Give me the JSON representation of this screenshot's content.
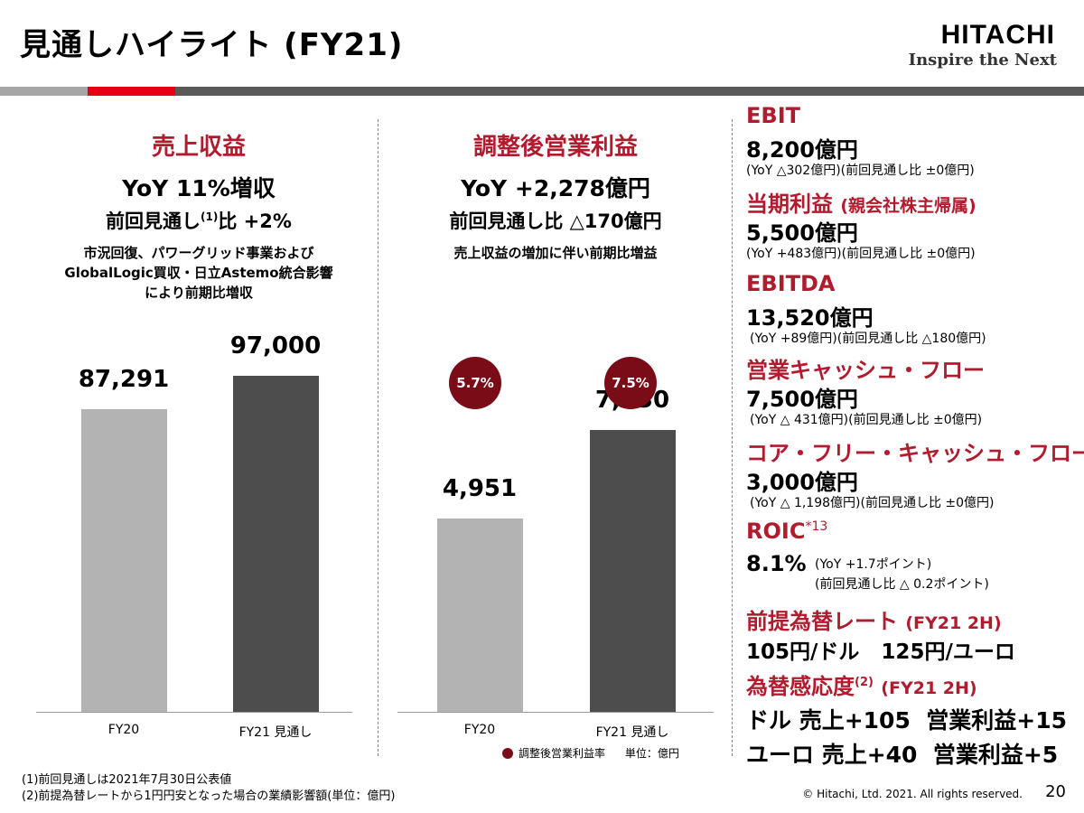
{
  "title": "見通しハイライト (FY21)",
  "logo": {
    "name": "HITACHI",
    "tagline": "Inspire the Next"
  },
  "colors": {
    "accent": "#b01c2e",
    "bar_fy20": "#b3b3b3",
    "bar_fy21": "#4d4d4d",
    "rate_circle": "#7a0c17",
    "band_gray": "#a6a6a6",
    "band_red": "#e60012",
    "band_dark": "#595959"
  },
  "revenue": {
    "title": "売上収益",
    "yoy": "YoY 11%増収",
    "prev_prefix": "前回見通し",
    "prev_sup": "(1)",
    "prev_suffix": "比  +2%",
    "note_lines": [
      "市況回復、パワーグリッド事業および",
      "GlobalLogic買収・日立Astemo統合影響",
      "により前期比増収"
    ]
  },
  "adj_op": {
    "title": "調整後営業利益",
    "yoy": "YoY +2,278億円",
    "prev": "前回見通し比 △170億円",
    "note": "売上収益の増加に伴い前期比増益",
    "legend": "調整後営業利益率",
    "unit": "単位：億円"
  },
  "chart_data": [
    {
      "type": "bar",
      "categories": [
        "FY20",
        "FY21 見通し"
      ],
      "values": [
        87291,
        97000
      ],
      "value_labels": [
        "87,291",
        "97,000"
      ],
      "ylim": [
        0,
        100000
      ],
      "title": "売上収益"
    },
    {
      "type": "bar",
      "categories": [
        "FY20",
        "FY21 見通し"
      ],
      "values": [
        4951,
        7230
      ],
      "value_labels": [
        "4,951",
        "7,230"
      ],
      "rates": [
        "5.7%",
        "7.5%"
      ],
      "rate_series": "調整後営業利益率",
      "ylim": [
        0,
        8900
      ],
      "title": "調整後営業利益"
    }
  ],
  "right_panel": {
    "ebit": {
      "label": "EBIT",
      "value": "8,200億円",
      "sub": "(YoY △302億円)(前回見通し比 ±0億円)"
    },
    "net_income": {
      "label": "当期利益",
      "label_small": "(親会社株主帰属)",
      "value": "5,500億円",
      "sub": "(YoY +483億円)(前回見通し比 ±0億円)"
    },
    "ebitda": {
      "label": "EBITDA",
      "value": "13,520億円",
      "sub": "(YoY +89億円)(前回見通し比 △180億円)"
    },
    "op_cf": {
      "label": "営業キャッシュ・フロー",
      "value": "7,500億円",
      "sub": "(YoY △ 431億円)(前回見通し比 ±0億円)"
    },
    "core_fcf": {
      "label": "コア・フリー・キャッシュ・フロー",
      "value": "3,000億円",
      "sub": "(YoY △ 1,198億円)(前回見通し比 ±0億円)"
    },
    "roic": {
      "label": "ROIC",
      "sup": "*13",
      "value": "8.1%",
      "sub1": "(YoY +1.7ポイント)",
      "sub2": "(前回見通し比 △ 0.2ポイント)"
    },
    "fx_rate": {
      "label": "前提為替レート",
      "label_small": "(FY21 2H)",
      "value": "105円/ドル   125円/ユーロ"
    },
    "fx_sens": {
      "label": "為替感応度",
      "sup": "(2)",
      "label_small": "(FY21 2H)",
      "line1": "ドル 売上+105  営業利益+15",
      "line2": "ユーロ 売上+40  営業利益+5"
    }
  },
  "footnotes": [
    "(1)前回見通しは2021年7月30日公表値",
    "(2)前提為替レートから1円円安となった場合の業績影響額(単位：億円)"
  ],
  "copyright": "© Hitachi, Ltd. 2021. All rights reserved.",
  "page_number": "20"
}
